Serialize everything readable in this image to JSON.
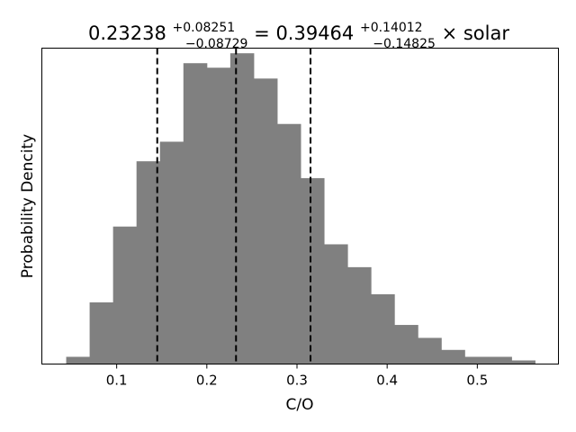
{
  "chart_data": {
    "type": "histogram",
    "title": {
      "median": "0.23238",
      "median_plus": "+0.08251",
      "median_minus": "−0.08729",
      "equals": " = ",
      "ratio": "0.39464",
      "ratio_plus": "+0.14012",
      "ratio_minus": "−0.14825",
      "suffix": " × solar"
    },
    "xlabel": "C/O",
    "ylabel": "Probability Dencity",
    "xlim": [
      0.017,
      0.59
    ],
    "ylim": [
      0,
      1.05
    ],
    "xticks": [
      0.1,
      0.2,
      0.3,
      0.4,
      0.5
    ],
    "xtick_labels": [
      "0.1",
      "0.2",
      "0.3",
      "0.4",
      "0.5"
    ],
    "yticks_visible": false,
    "bar_color": "#808080",
    "bins": [
      0.044,
      0.07,
      0.096,
      0.122,
      0.148,
      0.174,
      0.2,
      0.226,
      0.252,
      0.278,
      0.304,
      0.33,
      0.356,
      0.382,
      0.408,
      0.434,
      0.46,
      0.486,
      0.512,
      0.538,
      0.564
    ],
    "values": [
      0.024,
      0.205,
      0.457,
      0.674,
      0.739,
      1.0,
      0.985,
      1.033,
      0.949,
      0.798,
      0.618,
      0.398,
      0.322,
      0.232,
      0.13,
      0.087,
      0.047,
      0.024,
      0.024,
      0.012
    ],
    "vlines": [
      0.145,
      0.23238,
      0.315
    ]
  }
}
